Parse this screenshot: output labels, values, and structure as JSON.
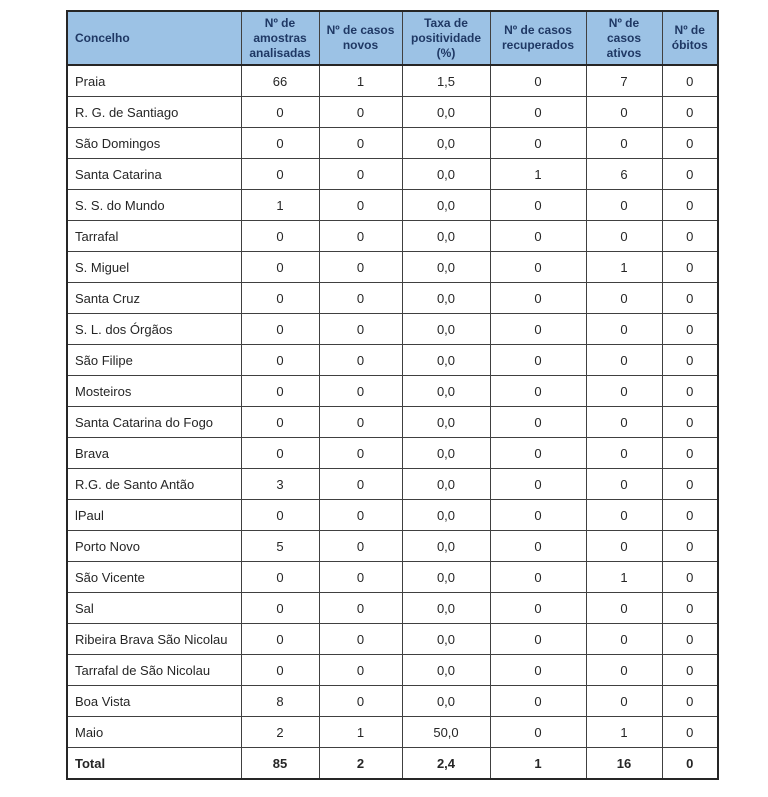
{
  "colors": {
    "header_bg": "#9CC2E5",
    "header_text": "#1F3864",
    "border": "#404040",
    "border_outer": "#262626",
    "body_text": "#262626",
    "page_bg": "#ffffff"
  },
  "table": {
    "name": "covid-municipality-table",
    "columns": [
      {
        "label": "Concelho",
        "align": "left",
        "width": 174
      },
      {
        "label": "Nº de amostras analisadas",
        "align": "center",
        "width": 78
      },
      {
        "label": "Nº de casos novos",
        "align": "center",
        "width": 83
      },
      {
        "label": "Taxa de positividade (%)",
        "align": "center",
        "width": 88
      },
      {
        "label": "Nº de casos recuperados",
        "align": "center",
        "width": 96
      },
      {
        "label": "Nº de casos ativos",
        "align": "center",
        "width": 76
      },
      {
        "label": "Nº de óbitos",
        "align": "center",
        "width": 56
      }
    ],
    "rows": [
      [
        "Praia",
        "66",
        "1",
        "1,5",
        "0",
        "7",
        "0"
      ],
      [
        "R. G. de Santiago",
        "0",
        "0",
        "0,0",
        "0",
        "0",
        "0"
      ],
      [
        "São Domingos",
        "0",
        "0",
        "0,0",
        "0",
        "0",
        "0"
      ],
      [
        "Santa Catarina",
        "0",
        "0",
        "0,0",
        "1",
        "6",
        "0"
      ],
      [
        "S. S. do Mundo",
        "1",
        "0",
        "0,0",
        "0",
        "0",
        "0"
      ],
      [
        "Tarrafal",
        "0",
        "0",
        "0,0",
        "0",
        "0",
        "0"
      ],
      [
        "S. Miguel",
        "0",
        "0",
        "0,0",
        "0",
        "1",
        "0"
      ],
      [
        "Santa Cruz",
        "0",
        "0",
        "0,0",
        "0",
        "0",
        "0"
      ],
      [
        "S. L. dos Órgãos",
        "0",
        "0",
        "0,0",
        "0",
        "0",
        "0"
      ],
      [
        "São Filipe",
        "0",
        "0",
        "0,0",
        "0",
        "0",
        "0"
      ],
      [
        "Mosteiros",
        "0",
        "0",
        "0,0",
        "0",
        "0",
        "0"
      ],
      [
        "Santa Catarina do Fogo",
        "0",
        "0",
        "0,0",
        "0",
        "0",
        "0"
      ],
      [
        "Brava",
        "0",
        "0",
        "0,0",
        "0",
        "0",
        "0"
      ],
      [
        "R.G. de Santo Antão",
        "3",
        "0",
        "0,0",
        "0",
        "0",
        "0"
      ],
      [
        "lPaul",
        "0",
        "0",
        "0,0",
        "0",
        "0",
        "0"
      ],
      [
        "Porto Novo",
        "5",
        "0",
        "0,0",
        "0",
        "0",
        "0"
      ],
      [
        "São Vicente",
        "0",
        "0",
        "0,0",
        "0",
        "1",
        "0"
      ],
      [
        "Sal",
        "0",
        "0",
        "0,0",
        "0",
        "0",
        "0"
      ],
      [
        "Ribeira Brava São Nicolau",
        "0",
        "0",
        "0,0",
        "0",
        "0",
        "0"
      ],
      [
        "Tarrafal de São Nicolau",
        "0",
        "0",
        "0,0",
        "0",
        "0",
        "0"
      ],
      [
        "Boa Vista",
        "8",
        "0",
        "0,0",
        "0",
        "0",
        "0"
      ],
      [
        "Maio",
        "2",
        "1",
        "50,0",
        "0",
        "1",
        "0"
      ]
    ],
    "total_row": [
      "Total",
      "85",
      "2",
      "2,4",
      "1",
      "16",
      "0"
    ]
  }
}
